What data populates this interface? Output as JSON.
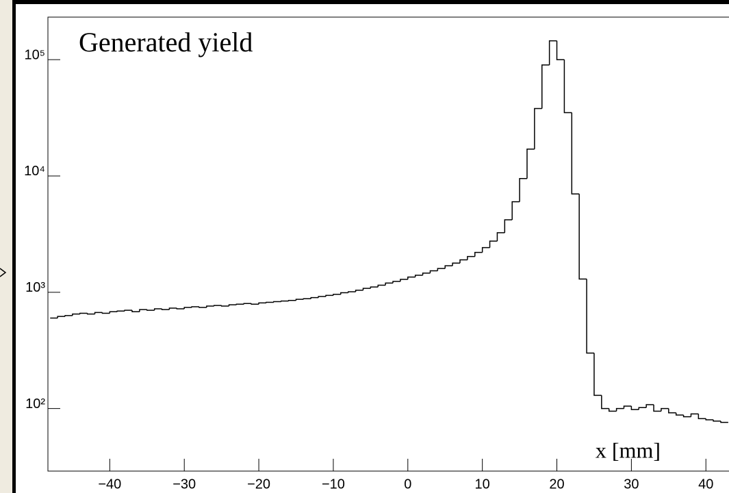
{
  "chart_data": {
    "type": "histogram",
    "title": "Generated yield",
    "xlabel": "x [mm]",
    "bins": [
      -48,
      -47,
      -46,
      -45,
      -44,
      -43,
      -42,
      -41,
      -40,
      -39,
      -38,
      -37,
      -36,
      -35,
      -34,
      -33,
      -32,
      -31,
      -30,
      -29,
      -28,
      -27,
      -26,
      -25,
      -24,
      -23,
      -22,
      -21,
      -20,
      -19,
      -18,
      -17,
      -16,
      -15,
      -14,
      -13,
      -12,
      -11,
      -10,
      -9,
      -8,
      -7,
      -6,
      -5,
      -4,
      -3,
      -2,
      -1,
      0,
      1,
      2,
      3,
      4,
      5,
      6,
      7,
      8,
      9,
      10,
      11,
      12,
      13,
      14,
      15,
      16,
      17,
      18,
      19,
      20,
      21,
      22,
      23,
      24,
      25,
      26,
      27,
      28,
      29,
      30,
      31,
      32,
      33,
      34,
      35,
      36,
      37,
      38,
      39,
      40,
      41,
      42,
      43
    ],
    "values": [
      600,
      620,
      630,
      650,
      660,
      650,
      670,
      660,
      680,
      690,
      700,
      680,
      710,
      700,
      720,
      710,
      730,
      720,
      740,
      750,
      740,
      760,
      770,
      760,
      780,
      790,
      800,
      790,
      810,
      820,
      830,
      840,
      850,
      870,
      880,
      900,
      920,
      940,
      960,
      990,
      1010,
      1040,
      1080,
      1110,
      1150,
      1200,
      1240,
      1290,
      1350,
      1400,
      1460,
      1530,
      1600,
      1690,
      1780,
      1900,
      2030,
      2200,
      2420,
      2750,
      3250,
      4200,
      6000,
      9500,
      17000,
      38000,
      90000,
      145000,
      100000,
      35000,
      7000,
      1300,
      300,
      130,
      100,
      95,
      100,
      105,
      98,
      102,
      108,
      95,
      100,
      92,
      88,
      85,
      90,
      82,
      80,
      78,
      76
    ],
    "color": "#000000",
    "xlim": [
      -48.3,
      43.1
    ],
    "xticks": [
      {
        "value": -40,
        "label": "−40"
      },
      {
        "value": -30,
        "label": "−30"
      },
      {
        "value": -20,
        "label": "−20"
      },
      {
        "value": -10,
        "label": "−10"
      },
      0,
      10,
      20,
      30,
      40
    ],
    "ylim": [
      29,
      232000
    ],
    "log_y": true,
    "yticks": [
      {
        "value": 100,
        "label": "10²"
      },
      {
        "value": 1000,
        "label": "10³"
      },
      {
        "value": 10000,
        "label": "10⁴"
      },
      {
        "value": 100000,
        "label": "10⁵"
      }
    ],
    "grid": false
  }
}
